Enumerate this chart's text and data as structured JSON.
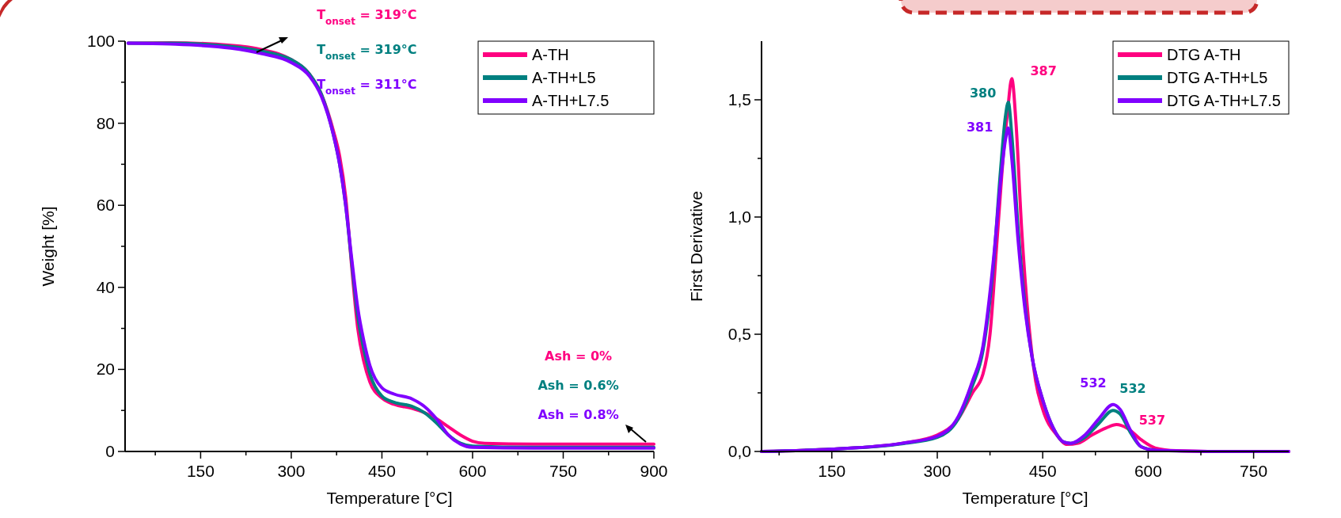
{
  "chart_data": [
    {
      "type": "line",
      "xlabel": "Temperature [°C]",
      "ylabel": "Weight [%]",
      "xlim": [
        25,
        900
      ],
      "ylim": [
        0,
        100
      ],
      "xticks": [
        {
          "value": 75,
          "label": null
        },
        150,
        {
          "value": 225,
          "label": null
        },
        300,
        {
          "value": 375,
          "label": null
        },
        450,
        {
          "value": 525,
          "label": null
        },
        600,
        {
          "value": 675,
          "label": null
        },
        750,
        {
          "value": 825,
          "label": null
        },
        900
      ],
      "yticks": [
        0,
        {
          "value": 10,
          "label": null
        },
        20,
        {
          "value": 30,
          "label": null
        },
        40,
        {
          "value": 50,
          "label": null
        },
        60,
        {
          "value": 70,
          "label": null
        },
        80,
        {
          "value": 90,
          "label": null
        },
        100
      ],
      "legend": "top right",
      "series": [
        {
          "name": "A-TH",
          "color": "#ff0080",
          "x": [
            30,
            100,
            200,
            250,
            300,
            330,
            350,
            370,
            380,
            390,
            400,
            410,
            420,
            430,
            450,
            470,
            500,
            520,
            540,
            560,
            580,
            600,
            620,
            700,
            800,
            900
          ],
          "values": [
            99.5,
            99.6,
            99,
            98,
            95.5,
            92,
            87,
            78,
            72,
            62,
            45,
            30,
            22,
            17,
            13,
            11.5,
            10.5,
            9.5,
            8,
            6,
            4,
            2.5,
            2,
            1.8,
            1.8,
            1.8
          ]
        },
        {
          "name": "A-TH+L5",
          "color": "#008080",
          "x": [
            30,
            100,
            200,
            250,
            300,
            330,
            350,
            370,
            380,
            390,
            400,
            410,
            420,
            430,
            450,
            470,
            500,
            520,
            540,
            560,
            580,
            600,
            700,
            900
          ],
          "values": [
            99.5,
            99.5,
            98.7,
            97.6,
            95.5,
            92,
            87,
            77,
            70,
            60,
            46,
            33,
            25,
            19,
            13.5,
            12,
            11,
            9.5,
            7,
            4,
            2,
            1.3,
            1,
            1
          ]
        },
        {
          "name": "A-TH+L7.5",
          "color": "#8000ff",
          "x": [
            30,
            100,
            200,
            250,
            300,
            330,
            350,
            370,
            380,
            390,
            400,
            410,
            420,
            430,
            450,
            470,
            500,
            520,
            540,
            560,
            580,
            600,
            700,
            900
          ],
          "values": [
            99.5,
            99.3,
            98.3,
            97,
            94.8,
            91.5,
            86.5,
            77,
            70,
            60,
            47,
            35,
            27,
            21,
            15.5,
            14,
            12.8,
            11,
            8,
            4,
            1.8,
            1,
            0.8,
            0.8
          ]
        }
      ],
      "annotations": [
        "T$_{onset}$ = 319°C",
        "T$_{onset}$ = 319°C",
        "T$_{onset}$ = 311°C",
        "Ash = 0%",
        "Ash = 0.6%",
        "Ash = 0.8%"
      ]
    },
    {
      "type": "line",
      "xlabel": "Temperature [°C]",
      "ylabel": "First Derivative",
      "xlim": [
        50,
        800
      ],
      "ylim": [
        0,
        1.75
      ],
      "xticks": [
        {
          "value": 75,
          "label": null
        },
        150,
        {
          "value": 225,
          "label": null
        },
        300,
        {
          "value": 375,
          "label": null
        },
        450,
        {
          "value": 525,
          "label": null
        },
        600,
        {
          "value": 675,
          "label": null
        },
        750
      ],
      "yticks": [
        {
          "value": 0,
          "label": "0,0"
        },
        {
          "value": 0.25,
          "label": null
        },
        {
          "value": 0.5,
          "label": "0,5"
        },
        {
          "value": 0.75,
          "label": null
        },
        {
          "value": 1,
          "label": "1,0"
        },
        {
          "value": 1.25,
          "label": null
        },
        {
          "value": 1.5,
          "label": "1,5"
        }
      ],
      "legend": "top right",
      "series": [
        {
          "name": "DTG A-TH",
          "color": "#ff0080",
          "x": [
            50,
            150,
            250,
            300,
            330,
            350,
            365,
            375,
            385,
            395,
            400,
            406,
            412,
            420,
            430,
            440,
            450,
            470,
            485,
            500,
            520,
            540,
            555,
            570,
            590,
            610,
            640,
            700,
            800
          ],
          "values": [
            0,
            0.01,
            0.035,
            0.07,
            0.14,
            0.25,
            0.33,
            0.5,
            0.9,
            1.3,
            1.45,
            1.59,
            1.4,
            0.95,
            0.55,
            0.3,
            0.18,
            0.07,
            0.03,
            0.035,
            0.07,
            0.1,
            0.115,
            0.1,
            0.05,
            0.015,
            0.003,
            0,
            0
          ]
        },
        {
          "name": "DTG A-TH+L5",
          "color": "#008080",
          "x": [
            50,
            150,
            250,
            300,
            330,
            350,
            365,
            380,
            390,
            397,
            401,
            406,
            415,
            425,
            435,
            450,
            465,
            480,
            490,
            510,
            530,
            550,
            560,
            575,
            590,
            610
          ],
          "values": [
            0,
            0.01,
            0.033,
            0.06,
            0.14,
            0.28,
            0.43,
            0.8,
            1.2,
            1.43,
            1.49,
            1.35,
            0.95,
            0.62,
            0.4,
            0.22,
            0.1,
            0.04,
            0.035,
            0.06,
            0.12,
            0.175,
            0.16,
            0.08,
            0.02,
            0.005
          ]
        },
        {
          "name": "DTG A-TH+L7.5",
          "color": "#8000ff",
          "x": [
            50,
            150,
            250,
            300,
            330,
            350,
            365,
            380,
            390,
            397,
            401,
            406,
            415,
            425,
            435,
            450,
            465,
            480,
            490,
            510,
            530,
            550,
            560,
            575,
            590,
            610,
            700,
            800
          ],
          "values": [
            0,
            0.01,
            0.035,
            0.065,
            0.15,
            0.3,
            0.45,
            0.82,
            1.15,
            1.33,
            1.38,
            1.25,
            0.9,
            0.6,
            0.4,
            0.22,
            0.1,
            0.04,
            0.035,
            0.07,
            0.14,
            0.2,
            0.18,
            0.09,
            0.02,
            0.005,
            0,
            0
          ]
        }
      ],
      "annotations": [
        {
          "text": "387",
          "x": 406,
          "y": 1.59
        },
        {
          "text": "380",
          "x": 401,
          "y": 1.49
        },
        {
          "text": "381",
          "x": 401,
          "y": 1.38
        },
        {
          "text": "537",
          "x": 555,
          "y": 0.115
        },
        {
          "text": "532",
          "x": 550,
          "y": 0.175
        },
        {
          "text": "532",
          "x": 550,
          "y": 0.2
        }
      ]
    }
  ]
}
